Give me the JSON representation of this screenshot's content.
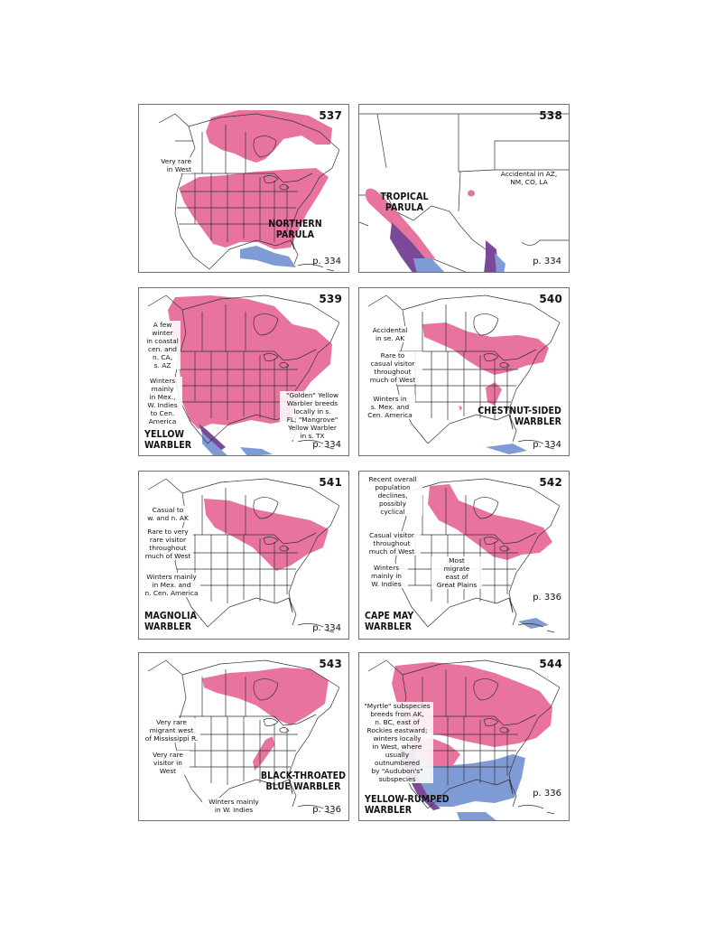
{
  "colors": {
    "breeding": "#e8739e",
    "breeding_light": "#f2aac4",
    "winter": "#7f9bd6",
    "yearround": "#7a4a98",
    "border": "#6f6f6f",
    "lines": "#333333"
  },
  "maps": [
    {
      "number": "537",
      "species": "NORTHERN\nPARULA",
      "page": "p. 334",
      "notes": [
        "Very rare\nin West"
      ]
    },
    {
      "number": "538",
      "species": "TROPICAL\nPARULA",
      "page": "p. 334",
      "notes": [
        "Accidental in AZ,\nNM, CO, LA"
      ]
    },
    {
      "number": "539",
      "species": "YELLOW\nWARBLER",
      "page": "p. 334",
      "notes": [
        "A few\nwinter\nin coastal\ncen. and\nn. CA,\ns. AZ",
        "Winters\nmainly\nin Mex.,\nW. Indies\nto Cen.\nAmerica",
        "\"Golden\" Yellow\nWarbler breeds\nlocally in s.\nFL; \"Mangrove\"\nYellow Warbler\nin s. TX"
      ]
    },
    {
      "number": "540",
      "species": "CHESTNUT-SIDED\nWARBLER",
      "page": "p. 334",
      "notes": [
        "Accidental\nin se. AK",
        "Rare to\ncasual visitor\nthroughout\nmuch of West",
        "Winters in\ns. Mex. and\nCen. America"
      ]
    },
    {
      "number": "541",
      "species": "MAGNOLIA\nWARBLER",
      "page": "p. 334",
      "notes": [
        "Casual to\nw. and n. AK",
        "Rare to very\nrare visitor\nthroughout\nmuch of West",
        "Winters mainly\nin Mex. and\nn. Cen. America"
      ]
    },
    {
      "number": "542",
      "species": "CAPE MAY\nWARBLER",
      "page": "p. 336",
      "notes": [
        "Recent overall\npopulation\ndeclines,\npossibly\ncyclical",
        "Casual visitor\nthroughout\nmuch of West",
        "Winters\nmainly in\nW. Indies",
        "Most\nmigrate\neast of\nGreat Plains"
      ]
    },
    {
      "number": "543",
      "species": "BLACK-THROATED\nBLUE WARBLER",
      "page": "p. 336",
      "notes": [
        "Very rare\nmigrant west\nof Mississippi R.",
        "Very rare\nvisitor in\nWest",
        "Winters mainly\nin W. Indies"
      ]
    },
    {
      "number": "544",
      "species": "YELLOW-RUMPED\nWARBLER",
      "page": "p. 336",
      "notes": [
        "\"Myrtle\" subspecies\nbreeds from AK,\nn. BC, east of\nRockies eastward;\nwinters locally\nin West, where\nusually\noutnumbered\nby \"Audubon's\"\nsubspecies"
      ]
    }
  ]
}
